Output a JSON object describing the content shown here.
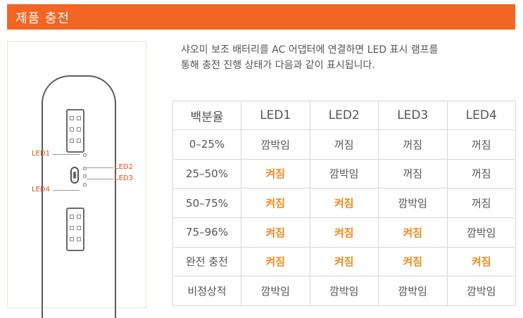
{
  "header": {
    "title": "제품 충전"
  },
  "description": {
    "line1": "샤오미 보조 배터리를 AC 어댑터에 연결하면 LED 표시 램프를",
    "line2": "통해 충전 진행 상태가 다음과 같이 표시됩니다."
  },
  "device": {
    "led_labels": {
      "led1": "LED1",
      "led2": "LED2",
      "led3": "LED3",
      "led4": "LED4"
    }
  },
  "table": {
    "headers": [
      "백분율",
      "LED1",
      "LED2",
      "LED3",
      "LED4"
    ],
    "rows": [
      {
        "cells": [
          "0–25%",
          "깜박임",
          "꺼짐",
          "꺼짐",
          "꺼짐"
        ]
      },
      {
        "cells": [
          "25–50%",
          "켜짐",
          "깜박임",
          "꺼짐",
          "꺼짐"
        ]
      },
      {
        "cells": [
          "50–75%",
          "켜짐",
          "켜짐",
          "깜박임",
          "꺼짐"
        ]
      },
      {
        "cells": [
          "75–96%",
          "켜짐",
          "켜짐",
          "켜짐",
          "깜박임"
        ]
      },
      {
        "cells": [
          "완전 충전",
          "켜짐",
          "켜짐",
          "켜짐",
          "켜짐"
        ]
      },
      {
        "cells": [
          "비정상적",
          "깜박임",
          "깜박임",
          "깜박임",
          "깜박임"
        ]
      }
    ],
    "highlight_color": "#f18a1c"
  },
  "colors": {
    "accent": "#f26522"
  }
}
